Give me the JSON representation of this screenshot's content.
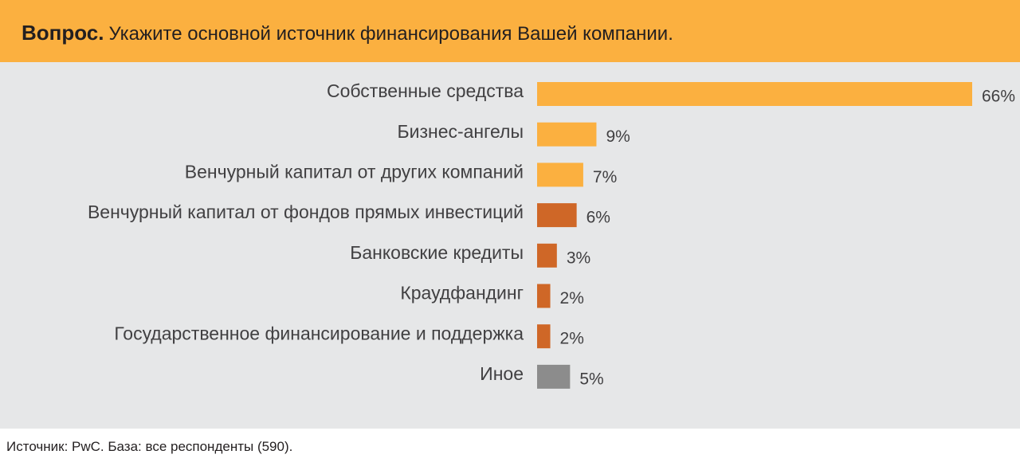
{
  "header": {
    "question_label": "Вопрос",
    "question_dot": ".",
    "question_text": "Укажите основной источник финансирования Вашей компании."
  },
  "footer": {
    "source": "Источник: PwC. База: все респонденты (590)."
  },
  "colors": {
    "header_bg": "#fbb040",
    "panel_bg": "#e6e7e8",
    "bar_light_orange": "#fbb040",
    "bar_dark_orange": "#cf6727",
    "bar_gray": "#8c8c8c"
  },
  "chart_data": {
    "type": "bar",
    "orientation": "horizontal",
    "title": "",
    "xlabel": "",
    "ylabel": "",
    "xlim": [
      0,
      66
    ],
    "grid": false,
    "legend": "none",
    "categories": [
      "Собственные средства",
      "Бизнес-ангелы",
      "Венчурный капитал от других компаний",
      "Венчурный капитал от фондов прямых инвестиций",
      "Банковские кредиты",
      "Краудфандинг",
      "Государственное финансирование и поддержка",
      "Иное"
    ],
    "values": [
      66,
      9,
      7,
      6,
      3,
      2,
      2,
      5
    ],
    "value_labels": [
      "66%",
      "9%",
      "7%",
      "6%",
      "3%",
      "2%",
      "2%",
      "5%"
    ],
    "bar_colors": [
      "#fbb040",
      "#fbb040",
      "#fbb040",
      "#cf6727",
      "#cf6727",
      "#cf6727",
      "#cf6727",
      "#8c8c8c"
    ]
  }
}
